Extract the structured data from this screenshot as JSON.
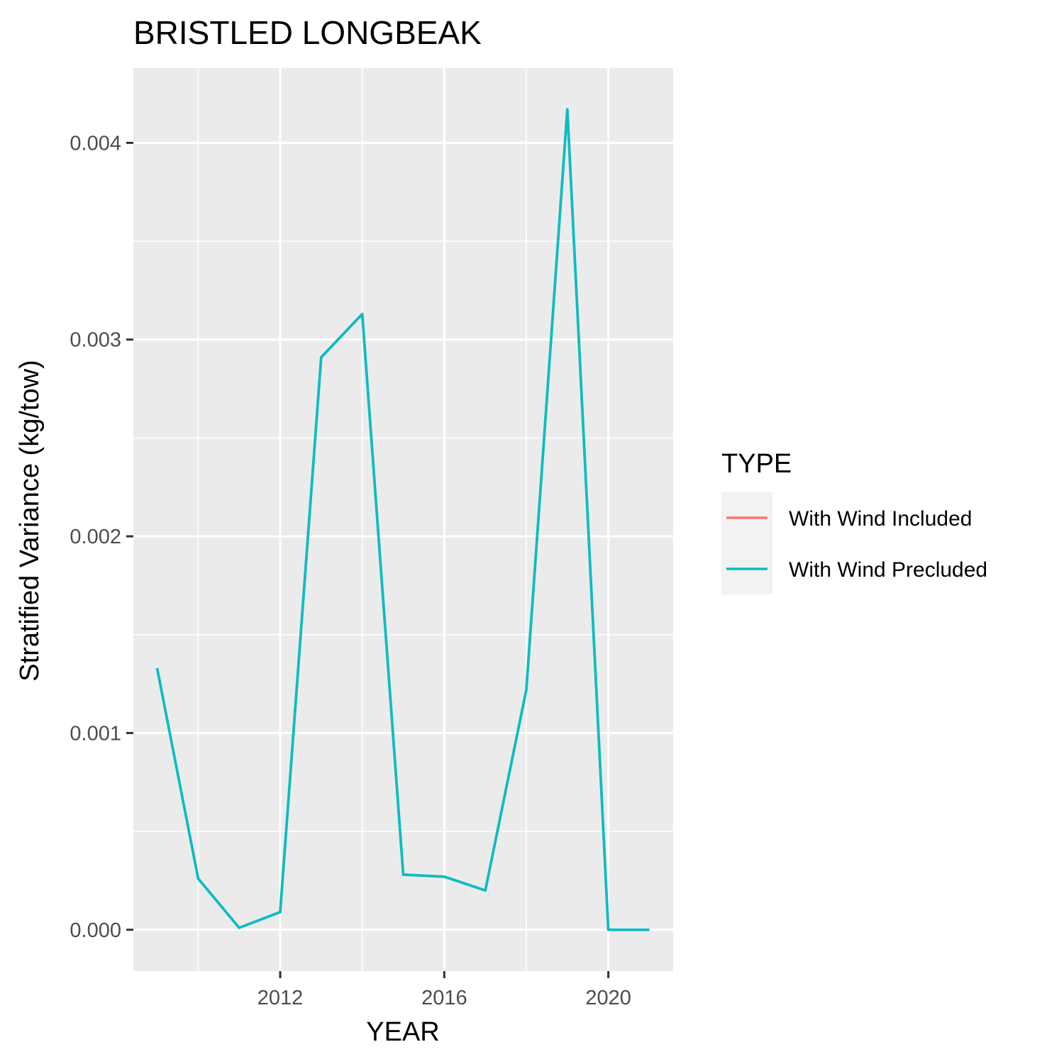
{
  "chart_data": {
    "type": "line",
    "title": "BRISTLED LONGBEAK",
    "xlabel": "YEAR",
    "ylabel": "Stratified Variance (kg/tow)",
    "x": [
      2009,
      2010,
      2011,
      2012,
      2013,
      2014,
      2015,
      2016,
      2017,
      2018,
      2019,
      2020,
      2021
    ],
    "series": [
      {
        "name": "With Wind Included",
        "color": "#F8766D",
        "values": [
          0.00133,
          0.00026,
          1e-05,
          9e-05,
          0.00291,
          0.00313,
          0.00028,
          0.00027,
          0.0002,
          0.00122,
          0.00417,
          0.0,
          0.0
        ]
      },
      {
        "name": "With Wind Precluded",
        "color": "#00BFC4",
        "values": [
          0.00133,
          0.00026,
          1e-05,
          9e-05,
          0.00291,
          0.00313,
          0.00028,
          0.00027,
          0.0002,
          0.00122,
          0.00417,
          0.0,
          0.0
        ]
      }
    ],
    "xlim": [
      2008.42,
      2021.58
    ],
    "ylim": [
      -0.00021,
      0.00438
    ],
    "x_ticks": [
      2012,
      2016,
      2020
    ],
    "x_tick_labels": [
      "2012",
      "2016",
      "2020"
    ],
    "x_minor_ticks": [
      2010,
      2014,
      2018
    ],
    "y_ticks": [
      0.0,
      0.001,
      0.002,
      0.003,
      0.004
    ],
    "y_tick_labels": [
      "0.000",
      "0.001",
      "0.002",
      "0.003",
      "0.004"
    ],
    "y_minor_ticks": [
      0.0005,
      0.0015,
      0.0025,
      0.0035
    ],
    "grid": true,
    "panel_background": "#EBEBEB",
    "legend": {
      "title": "TYPE",
      "position": "right"
    }
  }
}
